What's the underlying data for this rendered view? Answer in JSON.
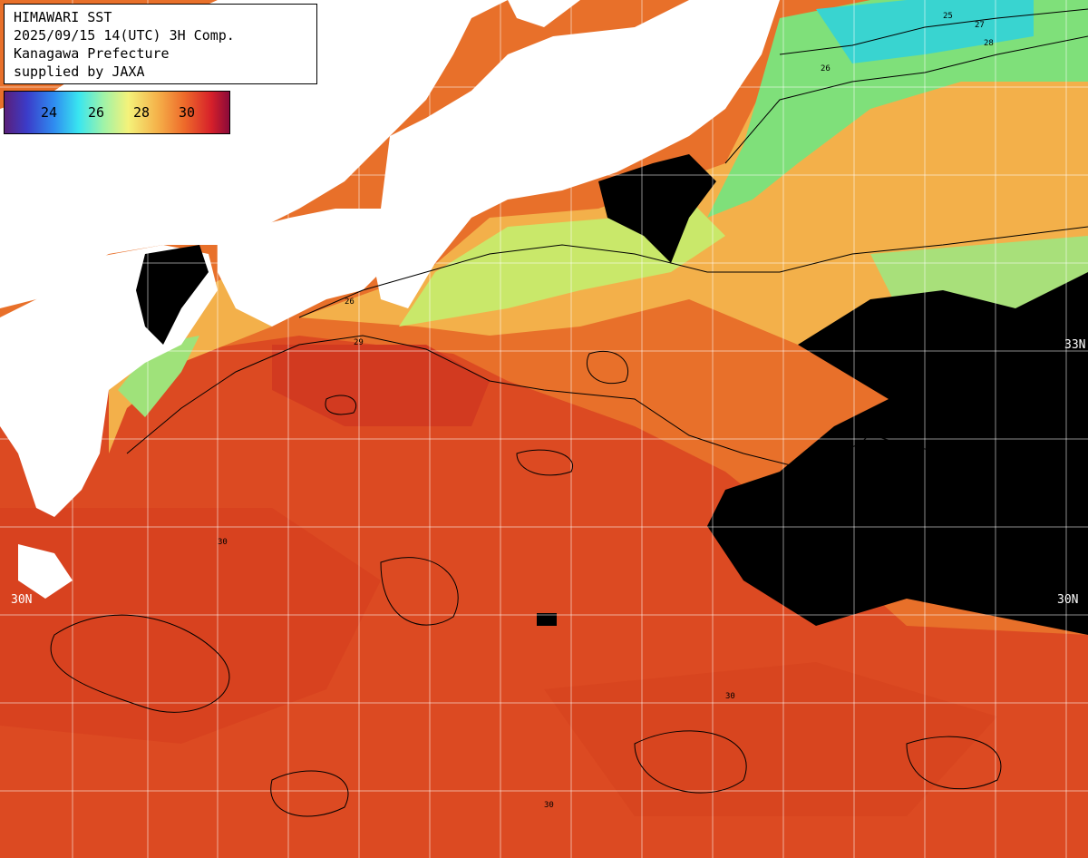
{
  "info": {
    "line1": "HIMAWARI SST",
    "line2": "2025/09/15 14(UTC) 3H Comp.",
    "line3": "Kanagawa Prefecture",
    "line4": "supplied by JAXA"
  },
  "legend": {
    "labels": [
      "24",
      "26",
      "28",
      "30"
    ]
  },
  "grid_labels": {
    "lat_30_left": "30N",
    "lat_30_right": "30N",
    "lat_33_right": "33N"
  },
  "contour_labels": [
    "27",
    "28",
    "29",
    "30",
    "26",
    "25"
  ],
  "colors": {
    "warm": "#e8702a",
    "hot": "#d63c1e",
    "cool": "#7fe07a",
    "cold": "#39d4d0",
    "land": "#ffffff",
    "cloud": "#000000"
  }
}
